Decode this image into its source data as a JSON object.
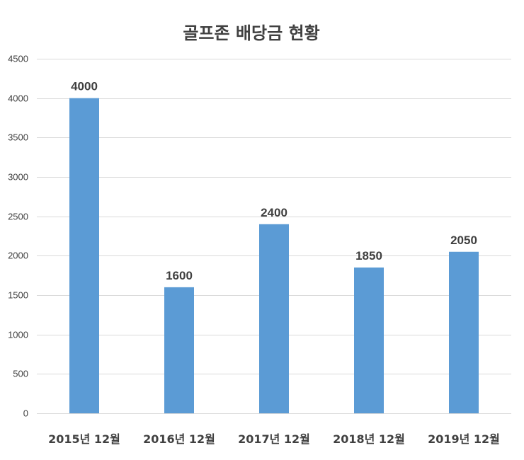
{
  "chart_data": {
    "type": "bar",
    "title": "골프존 배당금 현황",
    "xlabel": "",
    "ylabel": "",
    "categories": [
      "2015년 12월",
      "2016년 12월",
      "2017년 12월",
      "2018년 12월",
      "2019년 12월"
    ],
    "values": [
      4000,
      1600,
      2400,
      1850,
      2050
    ],
    "data_labels": [
      "4000",
      "1600",
      "2400",
      "1850",
      "2050"
    ],
    "ylim": [
      0,
      4500
    ],
    "yticks": [
      0,
      500,
      1000,
      1500,
      2000,
      2500,
      3000,
      3500,
      4000,
      4500
    ],
    "grid": true,
    "legend": "none",
    "bar_color": "#5b9bd5"
  }
}
